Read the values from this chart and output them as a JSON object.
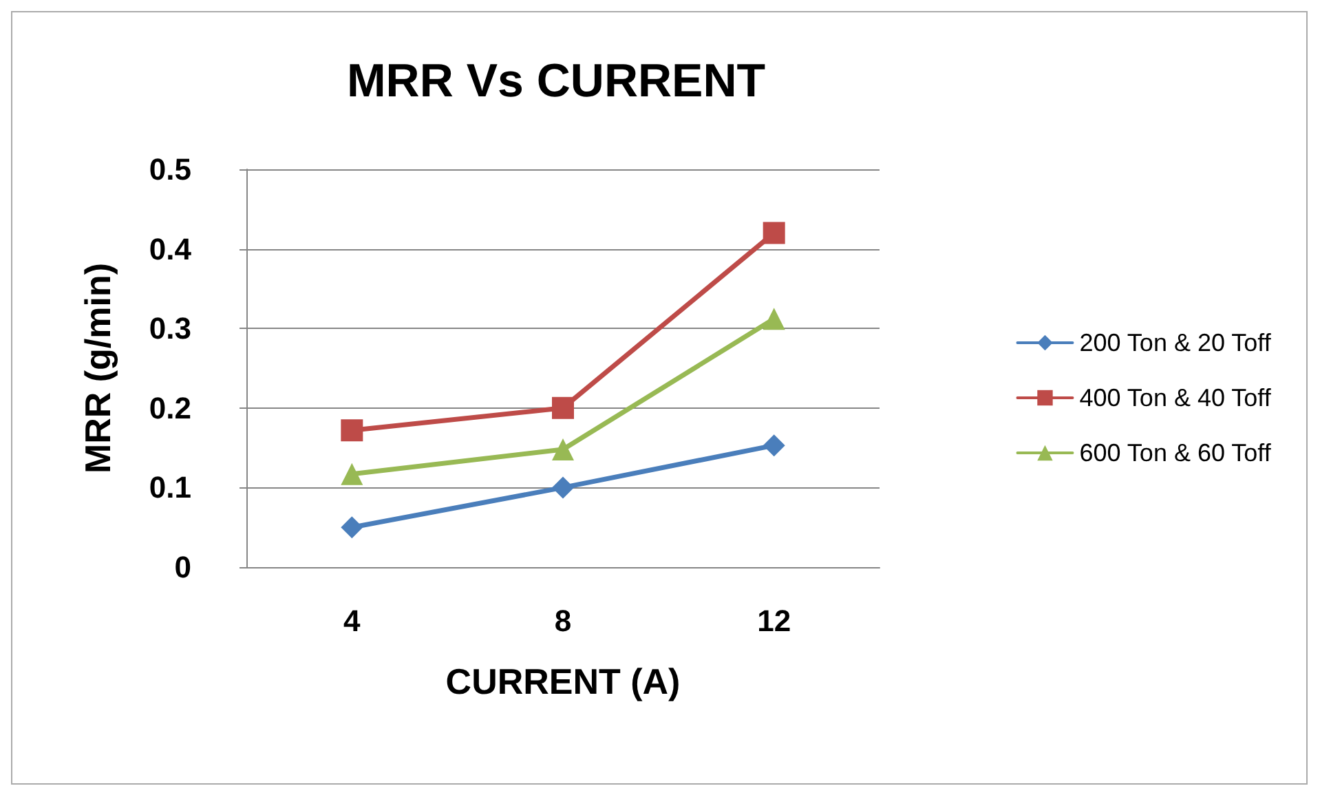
{
  "chart_data": {
    "type": "line",
    "title": "MRR Vs CURRENT",
    "xlabel": "CURRENT (A)",
    "ylabel": "MRR (g/min)",
    "categories": [
      "4",
      "8",
      "12"
    ],
    "series": [
      {
        "name": "200 Ton & 20 Toff",
        "color": "#4a7ebb",
        "marker": "diamond",
        "values": [
          0.05,
          0.1,
          0.153
        ]
      },
      {
        "name": "400 Ton & 40 Toff",
        "color": "#be4b48",
        "marker": "square",
        "values": [
          0.172,
          0.2,
          0.42
        ]
      },
      {
        "name": "600 Ton & 60 Toff",
        "color": "#98b954",
        "marker": "triangle",
        "values": [
          0.117,
          0.148,
          0.312
        ]
      }
    ],
    "ylim": [
      0,
      0.5
    ],
    "yticks": [
      0,
      0.1,
      0.2,
      0.3,
      0.4,
      0.5
    ],
    "grid": "y",
    "legend": "right",
    "line_style": "solid"
  }
}
